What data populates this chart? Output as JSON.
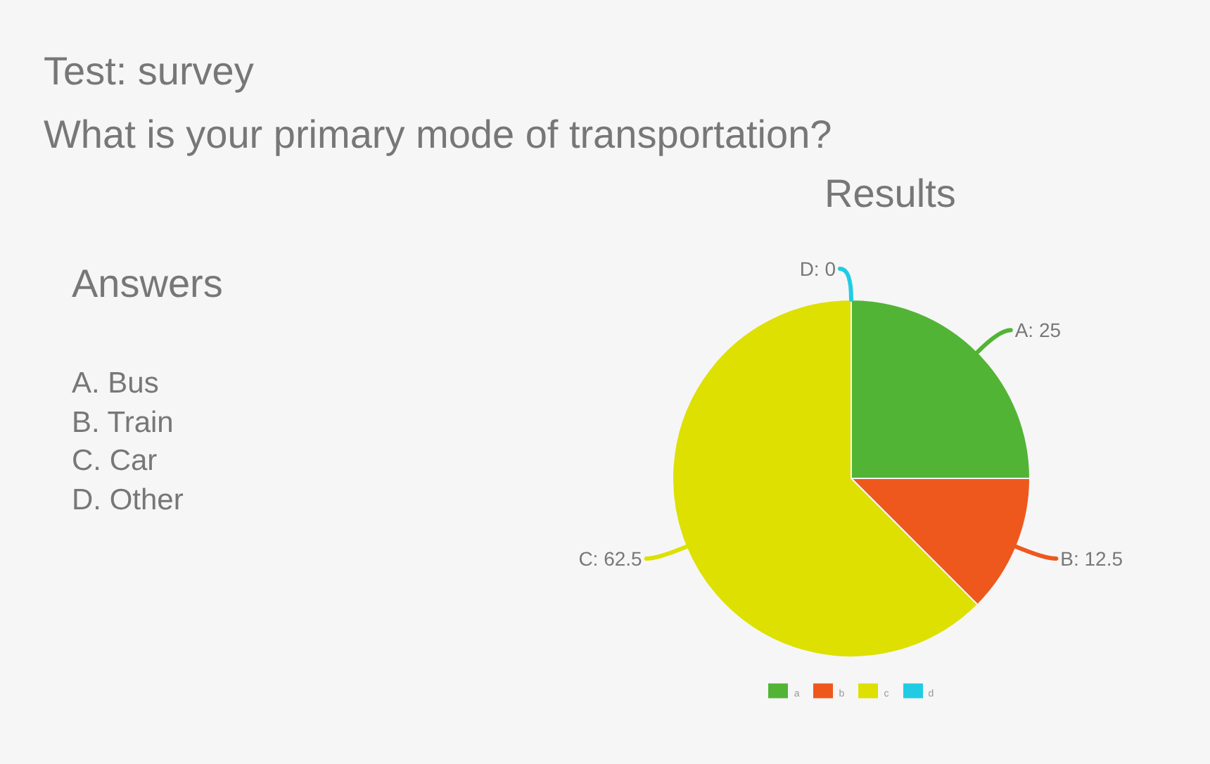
{
  "chart_data": {
    "type": "pie",
    "title": "Test: survey",
    "subtitle": "What is your primary mode of transportation?",
    "annotations": [
      "Results",
      "Answers",
      "A. Bus",
      "B. Train",
      "C. Car",
      "D. Other"
    ],
    "categories": [
      "a",
      "b",
      "c",
      "d"
    ],
    "values": [
      25,
      12.5,
      62.5,
      0
    ],
    "colors": [
      "#52b435",
      "#ee581d",
      "#dde000",
      "#22cbe4"
    ],
    "value_labels": [
      "A: 25",
      "B: 12.5",
      "C: 62.5",
      "D: 0"
    ],
    "legend": "bottom"
  }
}
